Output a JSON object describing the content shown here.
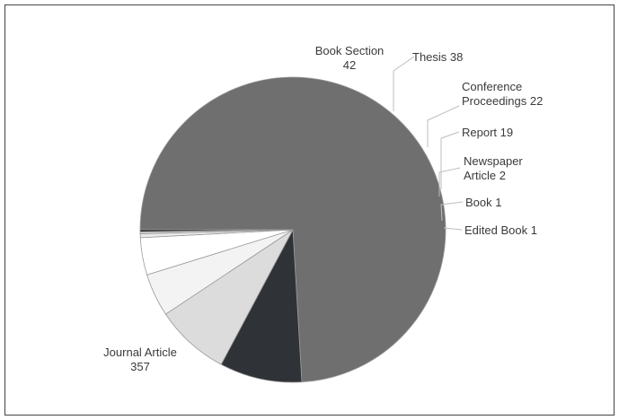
{
  "chart_data": {
    "type": "pie",
    "title": "",
    "slices": [
      {
        "label": "Journal Article",
        "value": 357,
        "color": "#6f6f6f",
        "label_text": [
          "Journal Article",
          "357"
        ]
      },
      {
        "label": "Book Section",
        "value": 42,
        "color": "#2f3236",
        "label_text": [
          "Book Section",
          "42"
        ]
      },
      {
        "label": "Thesis",
        "value": 38,
        "color": "#dcdcdc",
        "label_text": [
          "Thesis 38"
        ]
      },
      {
        "label": "Conference Proceedings",
        "value": 22,
        "color": "#f3f3f3",
        "label_text": [
          "Conference",
          "Proceedings 22"
        ]
      },
      {
        "label": "Report",
        "value": 19,
        "color": "#ffffff",
        "label_text": [
          "Report 19"
        ]
      },
      {
        "label": "Newspaper Article",
        "value": 2,
        "color": "#e9e9e9",
        "label_text": [
          "Newspaper",
          "Article 2"
        ]
      },
      {
        "label": "Book",
        "value": 1,
        "color": "#d7d7d7",
        "label_text": [
          "Book 1"
        ]
      },
      {
        "label": "Edited Book",
        "value": 1,
        "color": "#1f1f1f",
        "label_text": [
          "Edited Book 1"
        ]
      }
    ]
  }
}
